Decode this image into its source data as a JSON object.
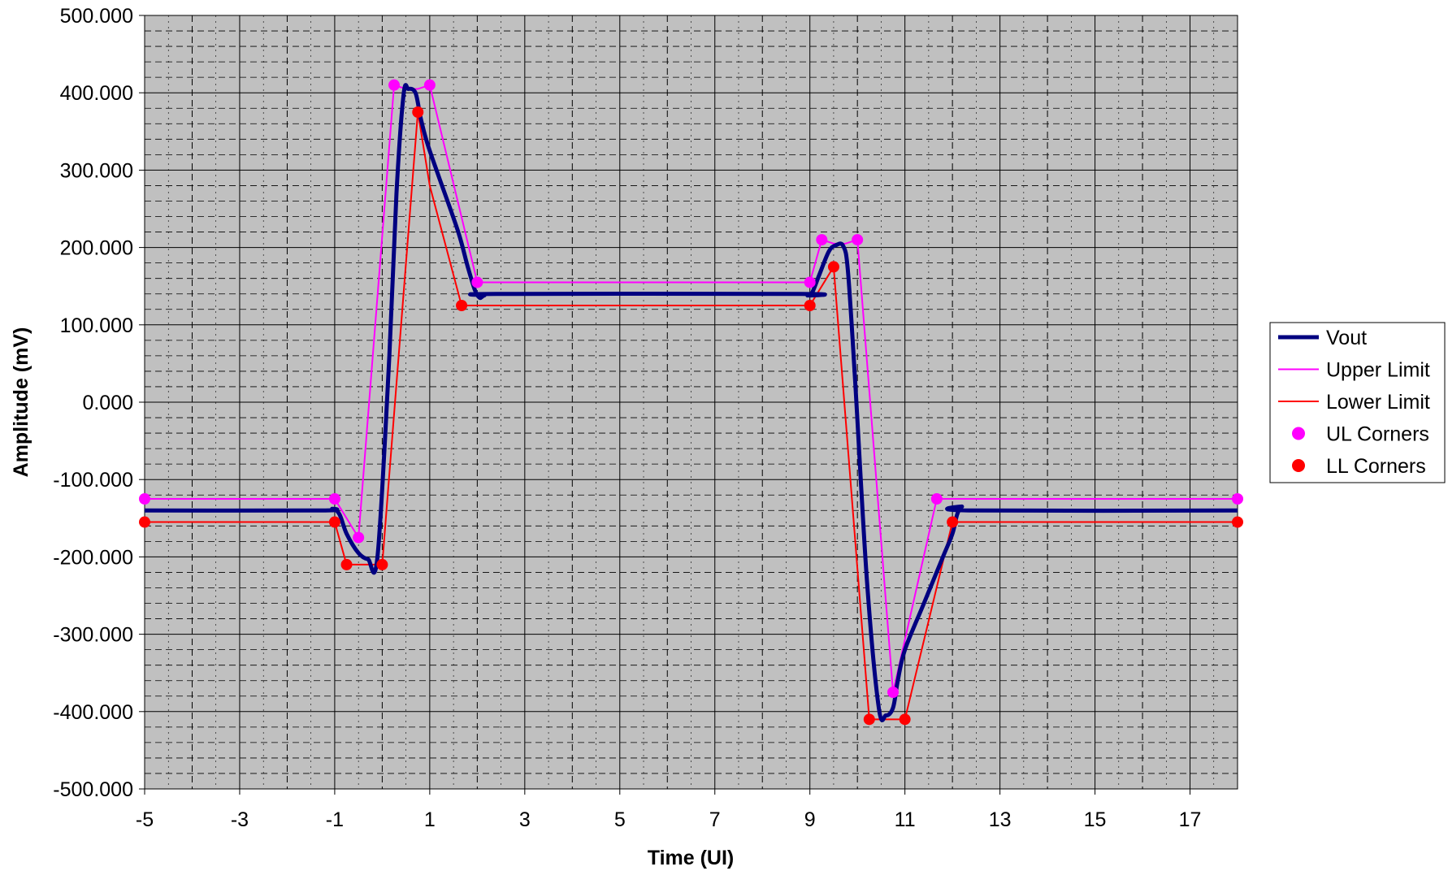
{
  "chart_data": {
    "type": "line",
    "xlabel": "Time (UI)",
    "ylabel": "Amplitude (mV)",
    "xlim": [
      -5,
      18
    ],
    "ylim": [
      -500,
      500
    ],
    "x_major_ticks": [
      -5,
      -3,
      -1,
      1,
      3,
      5,
      7,
      9,
      11,
      13,
      15,
      17
    ],
    "x_tick_labels": [
      "-5",
      "-3",
      "-1",
      "1",
      "3",
      "5",
      "7",
      "9",
      "11",
      "13",
      "15",
      "17"
    ],
    "x_minor_step": 0.5,
    "y_major_ticks": [
      -500,
      -400,
      -300,
      -200,
      -100,
      0,
      100,
      200,
      300,
      400,
      500
    ],
    "y_tick_labels": [
      "-500.000",
      "-400.000",
      "-300.000",
      "-200.000",
      "-100.000",
      "0.000",
      "100.000",
      "200.000",
      "300.000",
      "400.000",
      "500.000"
    ],
    "y_minor_step": 20,
    "grid": true,
    "plot_background": "#c0c0c0",
    "legend_position": "right",
    "series": [
      {
        "name": "Vout",
        "kind": "line",
        "color": "#000080",
        "smooth": true,
        "x": [
          -5,
          -1.3,
          -1.05,
          -0.9,
          -0.75,
          -0.5,
          -0.3,
          -0.1,
          0.15,
          0.3,
          0.45,
          0.55,
          0.7,
          0.8,
          0.9,
          1.0,
          1.2,
          1.6,
          1.8,
          1.95,
          2.05,
          2.15,
          2.4,
          8.8,
          8.95,
          9.05,
          9.2,
          9.4,
          9.55,
          9.7,
          9.8,
          9.95,
          10.2,
          10.45,
          10.6,
          10.75,
          10.85,
          11.0,
          11.4,
          11.8,
          12.0,
          12.1,
          12.2,
          12.35,
          18
        ],
        "y": [
          -140,
          -140,
          -138,
          -145,
          -170,
          -195,
          -203,
          -200,
          60,
          270,
          398,
          405,
          400,
          370,
          345,
          325,
          290,
          220,
          175,
          145,
          135,
          138,
          140,
          140,
          138,
          142,
          165,
          195,
          203,
          202,
          170,
          30,
          -230,
          -395,
          -405,
          -395,
          -360,
          -320,
          -260,
          -200,
          -170,
          -145,
          -135,
          -140,
          -140
        ]
      },
      {
        "name": "Upper Limit",
        "kind": "line",
        "color": "#ff00ff",
        "smooth": false,
        "x": [
          -5,
          -1,
          -0.5,
          0.25,
          0.5,
          0.75,
          1.0,
          2.0,
          2.3,
          8.75,
          9.0,
          9.25,
          9.5,
          9.75,
          10.0,
          10.75,
          11.67,
          12.0,
          18
        ],
        "y": [
          -125,
          -125,
          -175,
          410,
          405,
          405,
          410,
          155,
          155,
          155,
          155,
          210,
          205,
          205,
          210,
          -375,
          -125,
          -125,
          -125
        ]
      },
      {
        "name": "Lower Limit",
        "kind": "line",
        "color": "#ff0000",
        "smooth": false,
        "x": [
          -5,
          -1,
          -0.75,
          -0.5,
          -0.25,
          0,
          0.75,
          1.0,
          1.67,
          2.0,
          8.75,
          9.0,
          9.5,
          10.25,
          10.5,
          10.75,
          11.0,
          12.0,
          12.3,
          18
        ],
        "y": [
          -155,
          -155,
          -210,
          -210,
          -210,
          -210,
          375,
          280,
          125,
          125,
          125,
          125,
          175,
          -410,
          -410,
          -410,
          -410,
          -155,
          -155,
          -155
        ]
      },
      {
        "name": "UL Corners",
        "kind": "scatter",
        "color": "#ff00ff",
        "x": [
          -5,
          -1,
          -0.5,
          0.25,
          1,
          2,
          9,
          9.25,
          10,
          10.75,
          11.67,
          18
        ],
        "y": [
          -125,
          -125,
          -175,
          410,
          410,
          155,
          155,
          210,
          210,
          -375,
          -125,
          -125
        ]
      },
      {
        "name": "LL Corners",
        "kind": "scatter",
        "color": "#ff0000",
        "x": [
          -5,
          -1,
          -0.75,
          0,
          0.75,
          1.67,
          9,
          9.5,
          10.25,
          11,
          12,
          18
        ],
        "y": [
          -155,
          -155,
          -210,
          -210,
          375,
          125,
          125,
          175,
          -410,
          -410,
          -155,
          -155
        ]
      }
    ]
  }
}
